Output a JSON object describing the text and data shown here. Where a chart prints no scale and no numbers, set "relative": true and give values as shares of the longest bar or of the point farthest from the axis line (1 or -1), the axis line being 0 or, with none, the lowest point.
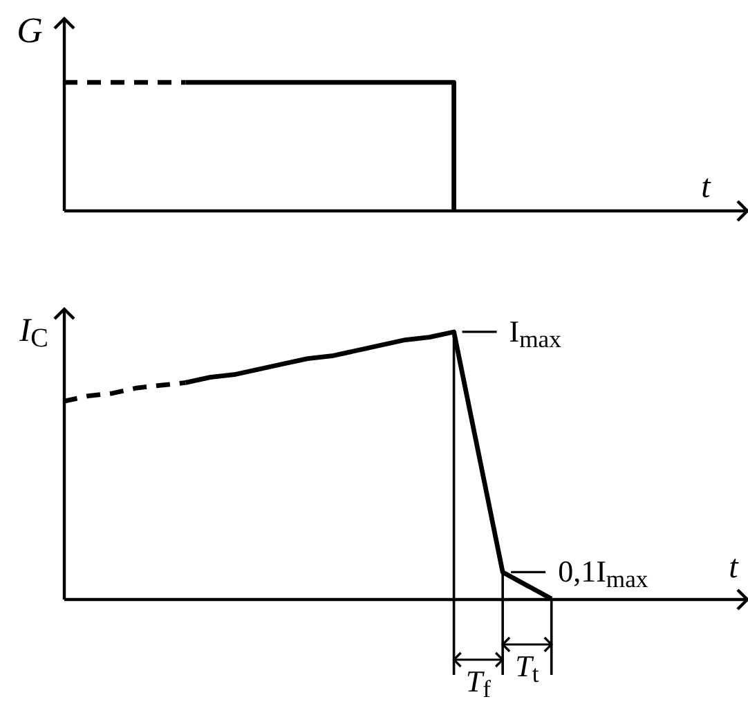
{
  "chart_data": [
    {
      "type": "step",
      "xlabel": "t",
      "ylabel": "G",
      "relative": true,
      "categories": [
        null,
        null,
        null,
        null,
        null,
        null,
        null,
        null,
        null,
        null,
        null,
        null,
        null,
        null,
        null,
        null,
        null,
        null,
        null,
        null,
        null,
        null,
        null,
        null,
        null,
        null,
        null,
        null,
        null
      ],
      "series": [
        {
          "color": "#000000",
          "line_style": "dashed",
          "values": [
            1,
            1,
            1,
            1,
            1,
            1,
            null,
            null,
            null,
            null,
            null,
            null,
            null,
            null,
            null,
            null,
            null,
            null,
            null,
            null,
            null,
            null,
            null,
            null,
            null,
            null,
            null,
            null,
            null
          ]
        },
        {
          "color": "#000000",
          "line_style": "solid",
          "values": [
            null,
            null,
            null,
            null,
            null,
            1,
            1,
            1,
            1,
            1,
            1,
            1,
            1,
            1,
            1,
            1,
            0,
            null,
            null,
            null,
            null,
            null,
            null,
            null,
            null,
            null,
            null,
            null,
            null
          ]
        }
      ]
    },
    {
      "type": "line",
      "xlabel": "t",
      "ylabel": "I$_{C}$",
      "relative": true,
      "categories": [
        null,
        null,
        null,
        null,
        null,
        null,
        null,
        null,
        null,
        null,
        null,
        null,
        null,
        null,
        null,
        null,
        null,
        null,
        null,
        null,
        null,
        null,
        null,
        null,
        null,
        null,
        null,
        null,
        null
      ],
      "series": [
        {
          "color": "#000000",
          "line_style": "dashed",
          "values": [
            0.74,
            0.76,
            0.77,
            0.79,
            0.8,
            0.81,
            null,
            null,
            null,
            null,
            null,
            null,
            null,
            null,
            null,
            null,
            null,
            null,
            null,
            null,
            null,
            null,
            null,
            null,
            null,
            null,
            null,
            null,
            null
          ]
        },
        {
          "color": "#000000",
          "line_style": "solid",
          "values": [
            null,
            null,
            null,
            null,
            null,
            0.81,
            0.83,
            0.84,
            0.86,
            0.88,
            0.9,
            0.91,
            0.93,
            0.95,
            0.97,
            0.98,
            1,
            0.55,
            0.1,
            0.05,
            0,
            null,
            null,
            null,
            null,
            null,
            null,
            null,
            null
          ]
        }
      ],
      "annotations": [
        "I$_{max}$",
        "0,1I$_{max}$",
        "T$_{f}$",
        "T$_{t}$"
      ]
    }
  ]
}
